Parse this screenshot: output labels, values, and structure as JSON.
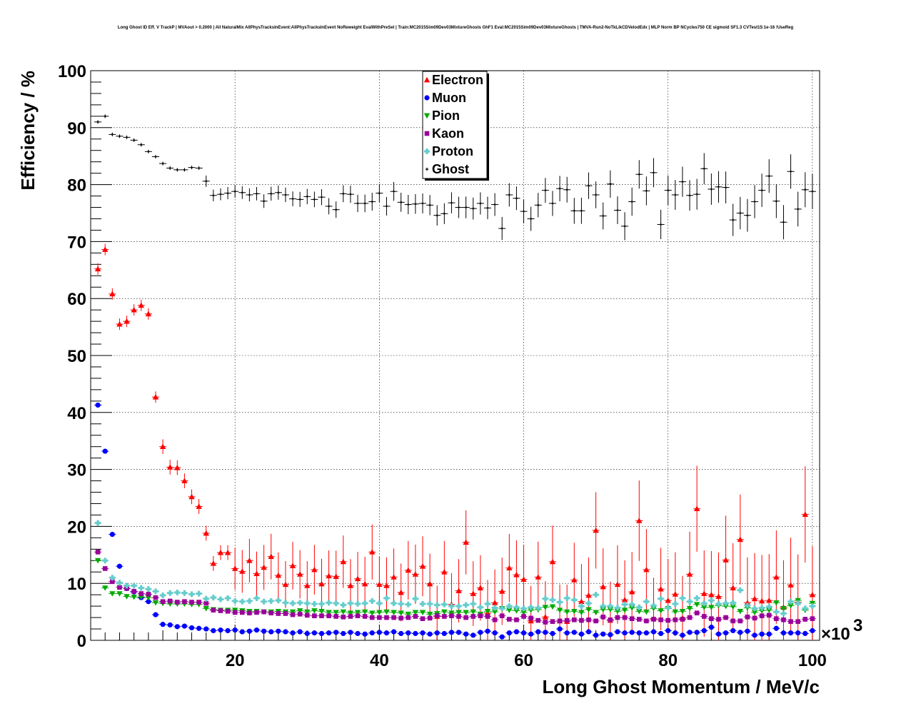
{
  "title": "Long Ghost ID Eff. V TrackP | MVAout > 0.2000 | All NaturalMix AllPhysTracksInEvent:AllPhysTracksInEvent NoReweight EvalWithPreSel | Train:MC2015Sim09Dev03MixtureGhosts GhF1 Eval:MC2015Sim09Dev03MixtureGhosts | TMVA-Run2-NoTkLikCDVelodEdx | MLP Norm BP NCycles750 CE sigmoid SF1.3 CVTest15:1e-16 !UseReg",
  "chart_data": {
    "type": "scatter",
    "xlabel": "Long Ghost Momentum / MeV/c",
    "ylabel": "Efficiency / %",
    "x_multiplier_label": "×10",
    "x_multiplier_exp": "3",
    "xlim": [
      0,
      101
    ],
    "ylim": [
      0,
      100
    ],
    "x_ticks": [
      20,
      40,
      60,
      80,
      100
    ],
    "y_ticks": [
      0,
      10,
      20,
      30,
      40,
      50,
      60,
      70,
      80,
      90,
      100
    ],
    "grid": true,
    "legend_position": "top-center",
    "x": [
      1,
      2,
      3,
      4,
      5,
      6,
      7,
      8,
      9,
      10,
      11,
      12,
      13,
      14,
      15,
      16,
      17,
      18,
      19,
      20,
      21,
      22,
      23,
      24,
      25,
      26,
      27,
      28,
      29,
      30,
      31,
      32,
      33,
      34,
      35,
      36,
      37,
      38,
      39,
      40,
      41,
      42,
      43,
      44,
      45,
      46,
      47,
      48,
      49,
      50,
      51,
      52,
      53,
      54,
      55,
      56,
      57,
      58,
      59,
      60,
      61,
      62,
      63,
      64,
      65,
      66,
      67,
      68,
      69,
      70,
      71,
      72,
      73,
      74,
      75,
      76,
      77,
      78,
      79,
      80,
      81,
      82,
      83,
      84,
      85,
      86,
      87,
      88,
      89,
      90,
      91,
      92,
      93,
      94,
      95,
      96,
      97,
      98,
      99,
      100
    ],
    "series": [
      {
        "name": "Electron",
        "color": "#ff0000",
        "marker": "triangle-up",
        "values": [
          65.2,
          68.6,
          60.8,
          55.5,
          56.0,
          58.0,
          58.8,
          57.3,
          42.7,
          34.0,
          30.4,
          30.3,
          28.0,
          25.2,
          23.5,
          18.8,
          13.5,
          15.4,
          15.4,
          12.6,
          12.1,
          14.0,
          11.7,
          12.8,
          14.7,
          11.4,
          9.8,
          13.1,
          11.6,
          9.6,
          12.4,
          9.9,
          11.3,
          11.2,
          13.8,
          9.6,
          10.8,
          9.9,
          15.5,
          9.8,
          9.6,
          11.1,
          8.4,
          12.3,
          11.6,
          13.0,
          9.9,
          4.2,
          12.0,
          6.3,
          8.7,
          17.2,
          8.2,
          9.2,
          4.8,
          6.6,
          8.6,
          12.7,
          11.5,
          10.7,
          3.4,
          11.1,
          4.1,
          13.8,
          3.4,
          3.3,
          10.6,
          6.8,
          7.9,
          19.3,
          9.4,
          3.5,
          9.8,
          7.1,
          8.5,
          21.0,
          12.4,
          3.8,
          9.0,
          7.0,
          8.1,
          3.9,
          11.6,
          23.1,
          8.2,
          8.0,
          7.7,
          14.1,
          9.2,
          17.7,
          6.6,
          7.3,
          6.9,
          7.0,
          11.1,
          5.8,
          9.7,
          6.7,
          22.1,
          8.0
        ]
      },
      {
        "name": "Muon",
        "color": "#0000ff",
        "marker": "circle",
        "values": [
          41.3,
          33.2,
          18.6,
          13.0,
          9.1,
          8.5,
          7.5,
          6.8,
          4.5,
          2.8,
          2.7,
          2.4,
          2.5,
          2.2,
          2.1,
          2.0,
          1.7,
          1.8,
          1.7,
          1.8,
          1.5,
          1.6,
          1.8,
          1.6,
          1.5,
          1.6,
          1.5,
          1.3,
          1.5,
          1.2,
          1.3,
          1.2,
          1.3,
          1.4,
          1.2,
          1.4,
          1.2,
          1.1,
          1.3,
          1.4,
          1.3,
          1.5,
          1.2,
          1.3,
          1.2,
          1.3,
          1.1,
          1.3,
          1.2,
          1.4,
          1.4,
          1.1,
          0.9,
          1.4,
          1.6,
          1.3,
          0.6,
          1.3,
          1.5,
          1.3,
          1.1,
          1.5,
          1.4,
          1.2,
          2.0,
          1.3,
          1.4,
          1.1,
          1.5,
          0.9,
          1.1,
          1.0,
          1.5,
          1.3,
          1.4,
          1.3,
          1.3,
          1.5,
          1.2,
          1.7,
          1.3,
          0.9,
          1.4,
          1.4,
          1.7,
          2.3,
          1.1,
          1.3,
          1.7,
          1.4,
          1.6,
          0.9,
          1.1,
          1.1,
          2.1,
          1.3,
          1.3,
          1.3,
          1.2,
          1.7
        ]
      },
      {
        "name": "Pion",
        "color": "#00aa00",
        "marker": "triangle-down",
        "values": [
          14.0,
          9.2,
          8.2,
          8.2,
          7.7,
          7.6,
          7.6,
          7.5,
          6.6,
          6.5,
          6.4,
          6.4,
          6.4,
          6.3,
          6.3,
          5.6,
          5.4,
          5.3,
          5.3,
          5.3,
          5.2,
          5.1,
          5.1,
          5.0,
          5.0,
          5.1,
          5.0,
          5.0,
          5.2,
          5.0,
          5.2,
          5.1,
          4.9,
          4.9,
          5.0,
          4.8,
          4.9,
          5.0,
          4.8,
          4.9,
          5.0,
          4.9,
          4.8,
          4.6,
          4.9,
          4.9,
          4.6,
          4.7,
          5.0,
          4.8,
          4.9,
          4.9,
          5.0,
          4.6,
          5.1,
          5.0,
          5.6,
          5.3,
          5.2,
          4.9,
          5.3,
          5.4,
          5.8,
          5.9,
          5.3,
          5.0,
          5.1,
          4.9,
          5.4,
          4.9,
          5.4,
          5.4,
          5.1,
          5.3,
          5.7,
          5.1,
          5.0,
          5.6,
          5.2,
          5.6,
          5.0,
          5.1,
          5.6,
          6.3,
          5.8,
          5.8,
          6.1,
          6.0,
          5.9,
          5.1,
          5.7,
          4.9,
          5.2,
          5.3,
          6.6,
          5.6,
          6.1,
          7.0,
          5.3,
          6.5
        ]
      },
      {
        "name": "Kaon",
        "color": "#990099",
        "marker": "square",
        "values": [
          15.5,
          12.6,
          10.3,
          9.3,
          9.1,
          8.6,
          8.2,
          8.1,
          7.5,
          6.8,
          6.9,
          6.7,
          6.8,
          6.7,
          6.7,
          6.5,
          5.3,
          5.2,
          5.1,
          4.9,
          4.9,
          4.8,
          4.9,
          5.0,
          4.8,
          4.7,
          4.7,
          4.5,
          4.6,
          4.4,
          4.3,
          4.3,
          4.3,
          4.2,
          4.1,
          4.2,
          4.3,
          4.2,
          4.0,
          4.0,
          4.0,
          4.0,
          3.9,
          4.0,
          4.2,
          3.8,
          3.9,
          4.3,
          4.2,
          4.3,
          4.2,
          4.0,
          4.2,
          4.3,
          4.2,
          3.6,
          4.3,
          3.7,
          3.6,
          4.2,
          3.9,
          3.5,
          3.2,
          3.3,
          3.4,
          3.5,
          3.6,
          3.5,
          3.6,
          3.4,
          4.1,
          3.6,
          4.0,
          4.0,
          3.8,
          3.7,
          3.4,
          3.7,
          3.6,
          3.5,
          3.6,
          3.7,
          4.0,
          4.8,
          4.2,
          3.8,
          3.7,
          4.0,
          3.4,
          3.4,
          4.1,
          3.9,
          4.3,
          4.4,
          3.8,
          3.6,
          3.3,
          3.3,
          3.7,
          3.8
        ]
      },
      {
        "name": "Proton",
        "color": "#66cccc",
        "marker": "cross",
        "values": [
          20.6,
          14.0,
          11.0,
          10.1,
          9.6,
          9.6,
          9.2,
          9.0,
          8.6,
          7.9,
          8.3,
          8.4,
          8.3,
          8.1,
          8.2,
          7.3,
          7.5,
          7.2,
          7.4,
          6.9,
          6.8,
          6.9,
          7.4,
          6.8,
          6.9,
          7.0,
          6.6,
          6.5,
          6.6,
          6.5,
          6.4,
          6.4,
          6.6,
          6.5,
          6.2,
          6.5,
          6.4,
          6.5,
          6.9,
          6.5,
          7.4,
          6.5,
          6.4,
          6.3,
          7.3,
          6.4,
          6.4,
          6.2,
          6.3,
          6.0,
          6.0,
          6.2,
          6.4,
          5.8,
          6.4,
          5.7,
          5.6,
          6.0,
          5.8,
          5.6,
          5.8,
          5.7,
          7.3,
          7.1,
          6.7,
          7.4,
          7.1,
          6.0,
          6.5,
          8.0,
          6.0,
          6.0,
          5.7,
          6.3,
          6.3,
          5.8,
          6.8,
          6.1,
          7.3,
          5.7,
          6.4,
          7.4,
          6.8,
          7.4,
          6.5,
          7.0,
          6.4,
          6.5,
          6.6,
          8.8,
          6.1,
          5.6,
          5.7,
          5.9,
          5.0,
          4.7,
          6.8,
          6.5,
          5.6,
          6.0
        ]
      },
      {
        "name": "Ghost",
        "color": "#000000",
        "marker": "star",
        "values": [
          91.0,
          92.0,
          88.8,
          88.5,
          88.3,
          87.8,
          87.0,
          85.8,
          84.9,
          83.7,
          82.9,
          82.6,
          82.6,
          83.0,
          82.9,
          80.6,
          78.1,
          78.3,
          78.5,
          78.8,
          78.6,
          78.2,
          78.4,
          77.1,
          78.4,
          78.6,
          78.2,
          77.5,
          77.4,
          77.9,
          77.4,
          77.8,
          76.2,
          75.6,
          78.4,
          78.3,
          76.7,
          76.7,
          77.0,
          78.5,
          76.2,
          78.8,
          76.9,
          76.5,
          76.6,
          76.7,
          76.4,
          74.6,
          74.9,
          76.8,
          76.0,
          76.0,
          75.8,
          76.7,
          75.9,
          76.5,
          72.3,
          78.2,
          77.6,
          75.3,
          74.0,
          76.4,
          79.0,
          76.7,
          79.3,
          79.1,
          75.4,
          75.4,
          79.8,
          78.2,
          74.5,
          80.1,
          75.5,
          72.7,
          77.0,
          81.8,
          78.9,
          82.1,
          73.0,
          79.0,
          78.2,
          80.5,
          78.1,
          78.3,
          82.8,
          79.2,
          79.6,
          79.5,
          73.8,
          75.0,
          74.6,
          77.0,
          79.0,
          81.5,
          77.1,
          73.4,
          82.3,
          75.7,
          79.1,
          78.8
        ]
      }
    ]
  }
}
